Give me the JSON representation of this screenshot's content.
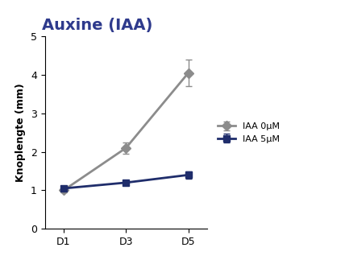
{
  "chart_data": {
    "type": "line",
    "title": "Auxine (IAA)",
    "y_label": "Knoplengte (mm)",
    "categories": [
      "D1",
      "D3",
      "D5"
    ],
    "series": [
      {
        "name": "IAA 0µM",
        "color": "#8c8c8c",
        "marker": "diamond",
        "line_style": "solid",
        "values": [
          1.0,
          2.1,
          4.05
        ],
        "error": [
          0.05,
          0.15,
          0.35
        ]
      },
      {
        "name": "IAA 5µM",
        "color": "#1f2d6b",
        "marker": "square",
        "line_style": "solid",
        "values": [
          1.05,
          1.2,
          1.4
        ],
        "error": [
          0.05,
          0.05,
          0.1
        ]
      }
    ],
    "ylim": [
      0,
      5
    ],
    "yticks": [
      0,
      1,
      2,
      3,
      4,
      5
    ],
    "grid": false,
    "legend": "right"
  }
}
